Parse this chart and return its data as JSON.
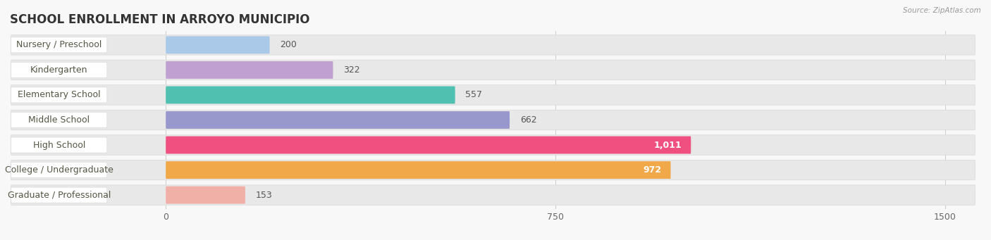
{
  "title": "SCHOOL ENROLLMENT IN ARROYO MUNICIPIO",
  "source": "Source: ZipAtlas.com",
  "categories": [
    "Nursery / Preschool",
    "Kindergarten",
    "Elementary School",
    "Middle School",
    "High School",
    "College / Undergraduate",
    "Graduate / Professional"
  ],
  "values": [
    200,
    322,
    557,
    662,
    1011,
    972,
    153
  ],
  "bar_colors": [
    "#aac8e8",
    "#c0a0d0",
    "#50c0b0",
    "#9898cc",
    "#f05080",
    "#f0a848",
    "#f0b0a8"
  ],
  "row_bg_color": "#e8e8e8",
  "xlim_data": [
    0,
    1500
  ],
  "xticks": [
    0,
    750,
    1500
  ],
  "fig_bg_color": "#f8f8f8",
  "title_fontsize": 12,
  "label_fontsize": 9,
  "value_fontsize": 9,
  "value_inside_threshold": 750
}
